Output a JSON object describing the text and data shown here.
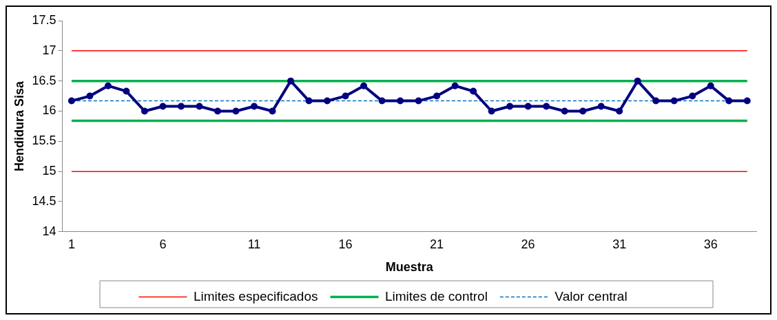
{
  "chart_data": {
    "type": "line",
    "xlabel": "Muestra",
    "ylabel": "Hendidura Sisa",
    "categories": [
      "1",
      null,
      null,
      null,
      null,
      "6",
      null,
      null,
      null,
      null,
      "11",
      null,
      null,
      null,
      null,
      "16",
      null,
      null,
      null,
      null,
      "21",
      null,
      null,
      null,
      null,
      "26",
      null,
      null,
      null,
      null,
      "31",
      null,
      null,
      null,
      null,
      "36",
      null,
      null
    ],
    "series": [
      {
        "color": "#000080",
        "values": [
          16.17,
          16.25,
          16.42,
          16.33,
          16,
          16.08,
          16.08,
          16.08,
          16,
          16,
          16.08,
          16,
          16.5,
          16.17,
          16.17,
          16.25,
          16.42,
          16.17,
          16.17,
          16.17,
          16.25,
          16.42,
          16.33,
          16,
          16.08,
          16.08,
          16.08,
          16,
          16,
          16.08,
          16,
          16.5,
          16.17,
          16.17,
          16.25,
          16.42,
          16.17,
          16.17
        ]
      }
    ],
    "ylim": [
      14,
      17.5
    ],
    "yticks": [
      14,
      14.5,
      15,
      15.5,
      16,
      16.5,
      17,
      17.5
    ],
    "ref_lines": [
      {
        "axis": "y",
        "value": 17,
        "label": "Limites especificados",
        "color": "#ff0000",
        "line_style": "solid"
      },
      {
        "axis": "y",
        "value": 15,
        "color": "#ff0000",
        "line_style": "solid"
      },
      {
        "axis": "y",
        "value": 16.5,
        "label": "Limites de control",
        "color": "#00b050",
        "line_style": "solid"
      },
      {
        "axis": "y",
        "value": 15.84,
        "color": "#00b050",
        "line_style": "solid"
      },
      {
        "axis": "y",
        "value": 16.17,
        "label": "Valor central",
        "color": "#0070c0",
        "line_style": "dashed"
      }
    ],
    "marker": "circle",
    "line_style": "solid",
    "grid": false,
    "legend": "bottom"
  }
}
